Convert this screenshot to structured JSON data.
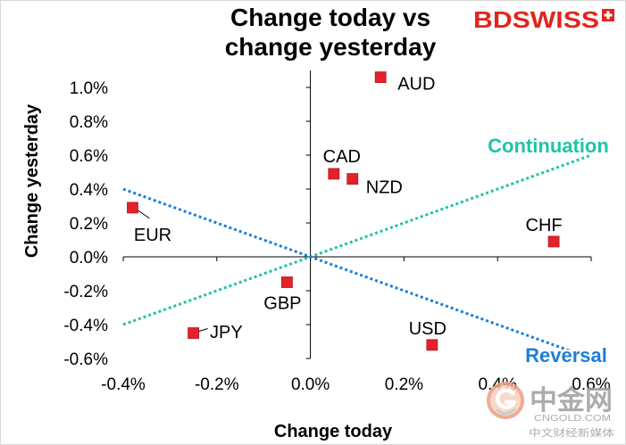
{
  "logo": {
    "text": "BDSWISS",
    "color": "#e1251b"
  },
  "watermark": {
    "name": "中金网",
    "domain": "CNGOLD.COM",
    "tagline": "中文财经新媒体",
    "color": "#9e9e9e"
  },
  "chart_data": {
    "type": "scatter",
    "title": [
      "Change today vs",
      "change yesterday"
    ],
    "xlabel": "Change today",
    "ylabel": "Change yesterday",
    "xlim": [
      -0.4,
      0.6
    ],
    "ylim": [
      -0.6,
      1.1
    ],
    "x_ticks": [
      -0.4,
      -0.2,
      0.0,
      0.2,
      0.4,
      0.6
    ],
    "x_tick_labels": [
      "-0.4%",
      "-0.2%",
      "0.0%",
      "0.2%",
      "0.4%",
      "0.6%"
    ],
    "y_ticks": [
      1.0,
      0.8,
      0.6,
      0.4,
      0.2,
      0.0,
      -0.2,
      -0.4,
      -0.6
    ],
    "y_tick_labels": [
      "1.0%",
      "0.8%",
      "0.6%",
      "0.4%",
      "0.2%",
      "0.0%",
      "-0.2%",
      "-0.4%",
      "-0.6%"
    ],
    "axes_cross_at_origin": true,
    "grid": false,
    "legend": "none",
    "marker": "square",
    "marker_color": "#e3222b",
    "points": [
      {
        "label": "AUD",
        "x": 0.15,
        "y": 1.06
      },
      {
        "label": "CAD",
        "x": 0.05,
        "y": 0.49
      },
      {
        "label": "NZD",
        "x": 0.09,
        "y": 0.46
      },
      {
        "label": "CHF",
        "x": 0.52,
        "y": 0.09
      },
      {
        "label": "EUR",
        "x": -0.38,
        "y": 0.29
      },
      {
        "label": "GBP",
        "x": -0.05,
        "y": -0.15
      },
      {
        "label": "JPY",
        "x": -0.25,
        "y": -0.45
      },
      {
        "label": "USD",
        "x": 0.26,
        "y": -0.52
      }
    ],
    "reference_lines": [
      {
        "name": "Continuation",
        "color": "#1fc4a6",
        "style": "dotted",
        "x": [
          -0.4,
          0.6
        ],
        "y": [
          -0.4,
          0.6
        ]
      },
      {
        "name": "Reversal",
        "color": "#1c7fd6",
        "style": "dotted",
        "x": [
          -0.4,
          0.6
        ],
        "y": [
          0.4,
          -0.6
        ]
      }
    ]
  }
}
